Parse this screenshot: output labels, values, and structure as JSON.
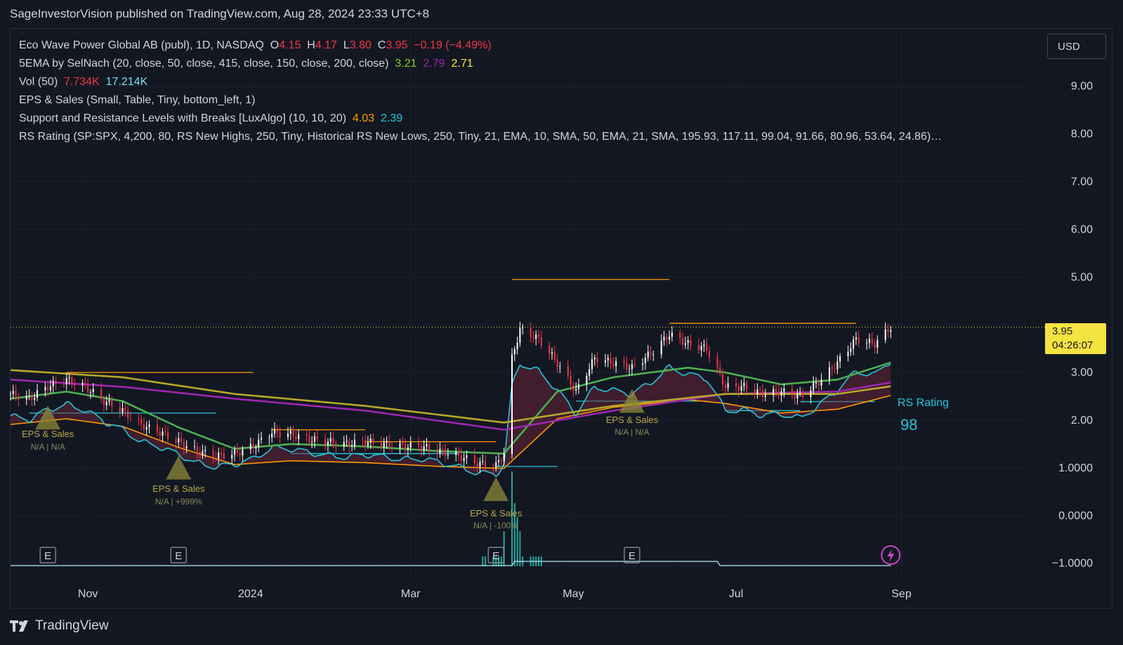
{
  "header": {
    "published_line": "SageInvestorVision published on TradingView.com, Aug 28, 2024 23:33 UTC+8"
  },
  "legend": {
    "symbol": "Eco Wave Power Global AB (publ), 1D, NASDAQ",
    "o_label": "O",
    "o_value": "4.15",
    "h_label": "H",
    "h_value": "4.17",
    "l_label": "L",
    "l_value": "3.80",
    "c_label": "C",
    "c_value": "3.95",
    "change": "−0.19 (−4.49%)",
    "ema_title": "5EMA by SelNach (20, close, 50, close, 415, close, 150, close, 200, close)",
    "ema_values": [
      "3.21",
      "2.79",
      "2.71"
    ],
    "vol_title": "Vol (50)",
    "vol_values": [
      "7.734K",
      "17.214K"
    ],
    "eps_title": "EPS & Sales (Small, Table, Tiny, bottom_left, 1)",
    "sr_title": "Support and Resistance Levels with Breaks [LuxAlgo] (10, 10, 20)",
    "sr_values": [
      "4.03",
      "2.39"
    ],
    "rs_title": "RS Rating (SP:SPX, 4,200, 80, RS New Highs, 250, Tiny, Historical RS New Lows, 250, Tiny, 21, EMA, 10, SMA, 50, EMA, 21, SMA, 195.93, 117.11, 99.04, 91.66, 80.96, 53.64, 24.86)…"
  },
  "currency_button": "USD",
  "price_tag": {
    "price": "3.95",
    "countdown": "04:26:07"
  },
  "rs_rating": {
    "label": "RS Rating",
    "value": "98"
  },
  "earnings_markers": [
    "E",
    "E",
    "E",
    "E"
  ],
  "eps_labels": [
    {
      "title": "EPS & Sales",
      "value": "N/A | N/A"
    },
    {
      "title": "EPS & Sales",
      "value": "N/A | +999%"
    },
    {
      "title": "EPS & Sales",
      "value": "N/A | -100%"
    },
    {
      "title": "EPS & Sales",
      "value": "N/A | N/A"
    }
  ],
  "brand": "TradingView",
  "colors": {
    "background": "#131722",
    "price_up": "#ffffff",
    "price_down": "#f23645",
    "ema_green": "#4caf50",
    "ema_purple": "#9c27b0",
    "ema_olive": "#b5a82a",
    "rs_line": "#26c6da",
    "rs_ma": "#ff9800",
    "resistance": "#ff9800",
    "support": "#26c6da",
    "eps_triangle": "#8d8a3a",
    "price_tag": "#f5e342"
  },
  "chart_data": {
    "type": "line",
    "title": "Eco Wave Power Global AB (publ), 1D, NASDAQ",
    "x_ticks": [
      "Nov",
      "2024",
      "Mar",
      "May",
      "Jul",
      "Sep"
    ],
    "y_ticks": [
      "9.00",
      "8.00",
      "7.00",
      "6.00",
      "5.00",
      "4.00",
      "3.00",
      "2.00",
      "1.0000",
      "0.0000",
      "−1.0000"
    ],
    "ylim": [
      -1,
      9.6
    ],
    "last_price": 3.95,
    "x_range": [
      "2023-10-03",
      "2024-10-18"
    ],
    "price_close_series": [
      [
        "2023-10-03",
        2.55
      ],
      [
        "2023-10-10",
        2.45
      ],
      [
        "2023-10-17",
        2.7
      ],
      [
        "2023-10-24",
        2.85
      ],
      [
        "2023-10-31",
        2.7
      ],
      [
        "2023-11-07",
        2.4
      ],
      [
        "2023-11-14",
        2.2
      ],
      [
        "2023-11-21",
        1.9
      ],
      [
        "2023-11-28",
        1.75
      ],
      [
        "2023-12-05",
        1.55
      ],
      [
        "2023-12-12",
        1.35
      ],
      [
        "2023-12-19",
        1.25
      ],
      [
        "2023-12-26",
        1.3
      ],
      [
        "2024-01-02",
        1.45
      ],
      [
        "2024-01-09",
        1.75
      ],
      [
        "2024-01-16",
        1.7
      ],
      [
        "2024-01-23",
        1.6
      ],
      [
        "2024-01-30",
        1.55
      ],
      [
        "2024-02-06",
        1.5
      ],
      [
        "2024-02-13",
        1.55
      ],
      [
        "2024-02-20",
        1.5
      ],
      [
        "2024-02-27",
        1.45
      ],
      [
        "2024-03-05",
        1.45
      ],
      [
        "2024-03-12",
        1.35
      ],
      [
        "2024-03-19",
        1.25
      ],
      [
        "2024-03-26",
        1.1
      ],
      [
        "2024-04-02",
        1.05
      ],
      [
        "2024-04-05",
        1.3
      ],
      [
        "2024-04-08",
        3.3
      ],
      [
        "2024-04-11",
        3.9
      ],
      [
        "2024-04-18",
        3.7
      ],
      [
        "2024-04-25",
        3.2
      ],
      [
        "2024-05-02",
        2.6
      ],
      [
        "2024-05-09",
        3.3
      ],
      [
        "2024-05-16",
        3.2
      ],
      [
        "2024-05-23",
        3.1
      ],
      [
        "2024-05-30",
        3.4
      ],
      [
        "2024-06-06",
        3.8
      ],
      [
        "2024-06-13",
        3.6
      ],
      [
        "2024-06-20",
        3.5
      ],
      [
        "2024-06-27",
        2.7
      ],
      [
        "2024-07-04",
        2.7
      ],
      [
        "2024-07-11",
        2.55
      ],
      [
        "2024-07-18",
        2.6
      ],
      [
        "2024-07-25",
        2.5
      ],
      [
        "2024-08-01",
        2.8
      ],
      [
        "2024-08-08",
        3.2
      ],
      [
        "2024-08-15",
        3.7
      ],
      [
        "2024-08-22",
        3.6
      ],
      [
        "2024-08-28",
        3.95
      ]
    ],
    "series": [
      {
        "values": [
          [
            "2023-10-03",
            2.45
          ],
          [
            "2023-10-24",
            2.6
          ],
          [
            "2023-11-14",
            2.4
          ],
          [
            "2023-12-05",
            1.85
          ],
          [
            "2023-12-26",
            1.4
          ],
          [
            "2024-01-16",
            1.5
          ],
          [
            "2024-02-13",
            1.45
          ],
          [
            "2024-03-12",
            1.35
          ],
          [
            "2024-04-05",
            1.3
          ],
          [
            "2024-04-25",
            2.6
          ],
          [
            "2024-05-16",
            2.9
          ],
          [
            "2024-06-13",
            3.1
          ],
          [
            "2024-06-27",
            3.0
          ],
          [
            "2024-07-18",
            2.75
          ],
          [
            "2024-08-08",
            2.85
          ],
          [
            "2024-08-28",
            3.21
          ]
        ]
      },
      {
        "values": [
          [
            "2023-10-03",
            2.85
          ],
          [
            "2023-11-14",
            2.7
          ],
          [
            "2023-12-26",
            2.45
          ],
          [
            "2024-02-13",
            2.2
          ],
          [
            "2024-04-05",
            1.8
          ],
          [
            "2024-05-16",
            2.2
          ],
          [
            "2024-06-27",
            2.55
          ],
          [
            "2024-08-08",
            2.6
          ],
          [
            "2024-08-28",
            2.79
          ]
        ]
      },
      {
        "values": [
          [
            "2023-10-03",
            3.05
          ],
          [
            "2023-11-14",
            2.9
          ],
          [
            "2023-12-26",
            2.55
          ],
          [
            "2024-02-13",
            2.3
          ],
          [
            "2024-04-05",
            1.95
          ],
          [
            "2024-05-16",
            2.3
          ],
          [
            "2024-06-27",
            2.55
          ],
          [
            "2024-08-08",
            2.55
          ],
          [
            "2024-08-28",
            2.71
          ]
        ]
      }
    ],
    "resistance_levels": [
      {
        "from": "2023-10-24",
        "to": "2024-01-02",
        "price": 3.0
      },
      {
        "from": "2024-01-09",
        "to": "2024-02-13",
        "price": 1.8
      },
      {
        "from": "2024-02-13",
        "to": "2024-04-02",
        "price": 1.55
      },
      {
        "from": "2024-04-08",
        "to": "2024-06-06",
        "price": 4.95
      },
      {
        "from": "2024-06-06",
        "to": "2024-08-15",
        "price": 4.03
      }
    ],
    "support_levels": [
      {
        "from": "2023-10-10",
        "to": "2023-12-19",
        "price": 2.15
      },
      {
        "from": "2024-01-16",
        "to": "2024-03-19",
        "price": 1.3
      },
      {
        "from": "2024-04-02",
        "to": "2024-04-25",
        "price": 1.03
      },
      {
        "from": "2024-05-02",
        "to": "2024-06-20",
        "price": 2.4
      },
      {
        "from": "2024-06-27",
        "to": "2024-07-25",
        "price": 2.2
      },
      {
        "from": "2024-07-25",
        "to": "2024-08-22",
        "price": 2.39
      }
    ],
    "eps_events": [
      "2023-10-17",
      "2023-12-05",
      "2024-04-02",
      "2024-05-23"
    ]
  }
}
